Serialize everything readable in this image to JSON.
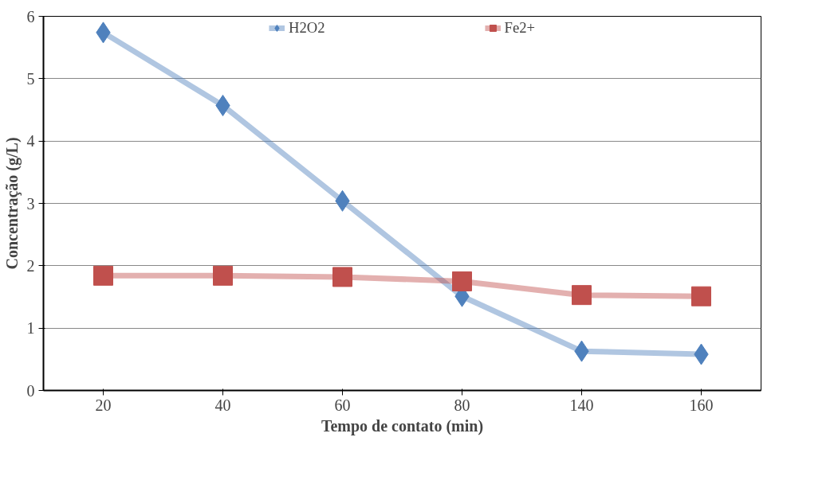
{
  "chart_data": {
    "type": "line",
    "xlabel": "Tempo de contato (min)",
    "ylabel": "Concentração (g/L)",
    "categories": [
      "20",
      "40",
      "60",
      "80",
      "140",
      "160"
    ],
    "series": [
      {
        "name": "H2O2",
        "color": "#4f81bd",
        "marker": "diamond",
        "values": [
          5.74,
          4.57,
          3.04,
          1.51,
          0.63,
          0.58
        ]
      },
      {
        "name": "Fe2+",
        "color": "#c0504d",
        "marker": "square",
        "values": [
          1.84,
          1.84,
          1.82,
          1.75,
          1.53,
          1.51
        ]
      }
    ],
    "ylim": [
      0,
      6
    ],
    "yticks": [
      0,
      1,
      2,
      3,
      4,
      5,
      6
    ],
    "grid": "y",
    "legend": "top"
  }
}
